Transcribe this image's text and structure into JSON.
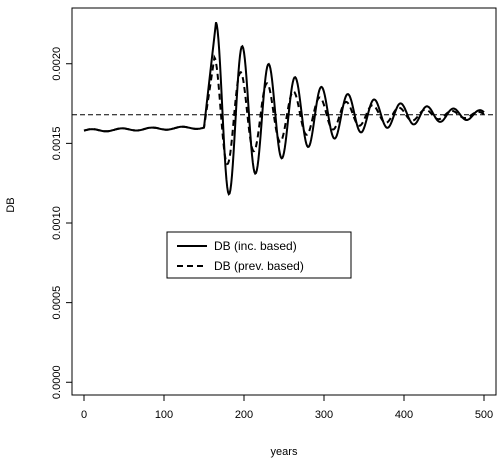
{
  "chart_data": {
    "type": "line",
    "title": "",
    "xlabel": "years",
    "ylabel": "DB",
    "xlim": [
      -15,
      515
    ],
    "ylim": [
      -8e-05,
      0.00235
    ],
    "x_ticks": [
      0,
      100,
      200,
      300,
      400,
      500
    ],
    "y_ticks": [
      0.0,
      0.0005,
      0.001,
      0.0015,
      0.002
    ],
    "x_tick_labels": [
      "0",
      "100",
      "200",
      "300",
      "400",
      "500"
    ],
    "y_tick_labels": [
      "0.0000",
      "0.0005",
      "0.0010",
      "0.0015",
      "0.0020"
    ],
    "reference_line": {
      "y": 0.00168,
      "style": "dashed"
    },
    "legend": {
      "position": "center-left",
      "entries": [
        {
          "label": "DB (inc. based)",
          "style": "solid"
        },
        {
          "label": "DB (prev. based)",
          "style": "dashed"
        }
      ]
    },
    "series": [
      {
        "name": "DB (inc. based)",
        "style": "solid",
        "baseline": 0.00158,
        "baseline_end": 0.0016,
        "x_start": 0,
        "x_shock": 150,
        "x_end": 500,
        "oscillation": {
          "equilibrium": 0.00168,
          "amplitude_start": 0.00058,
          "decay_rate": 0.0091,
          "period": 33,
          "first_peak_x": 165
        }
      },
      {
        "name": "DB (prev. based)",
        "style": "dashed",
        "baseline": 0.00158,
        "baseline_end": 0.0016,
        "x_start": 0,
        "x_shock": 150,
        "x_end": 500,
        "oscillation": {
          "equilibrium": 0.00168,
          "amplitude_start": 0.00036,
          "decay_rate": 0.0091,
          "period": 33,
          "first_peak_x": 163
        }
      }
    ]
  }
}
